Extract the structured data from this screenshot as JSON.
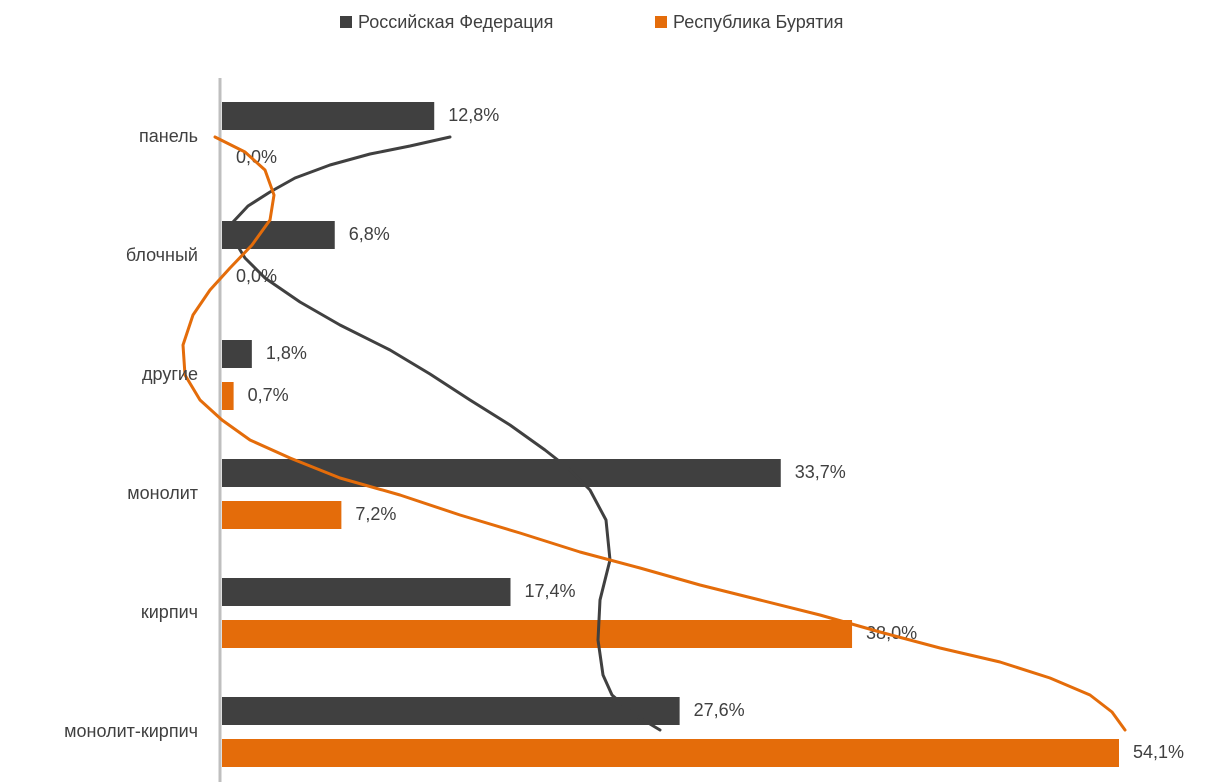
{
  "chart_data": {
    "type": "bar",
    "orientation": "horizontal",
    "categories": [
      "панель",
      "блочный",
      "другие",
      "монолит",
      "кирпич",
      "монолит-кирпич"
    ],
    "series": [
      {
        "name": "Российская Федерация",
        "color": "#404040",
        "values": [
          12.8,
          6.8,
          1.8,
          33.7,
          17.4,
          27.6
        ],
        "value_labels": [
          "12,8%",
          "6,8%",
          "1,8%",
          "33,7%",
          "17,4%",
          "27,6%"
        ]
      },
      {
        "name": "Республика Бурятия",
        "color": "#e46c0a",
        "values": [
          0.0,
          0.0,
          0.7,
          7.2,
          38.0,
          54.1
        ],
        "value_labels": [
          "0,0%",
          "0,0%",
          "0,7%",
          "7,2%",
          "38,0%",
          "54,1%"
        ]
      }
    ],
    "legend": "top"
  }
}
